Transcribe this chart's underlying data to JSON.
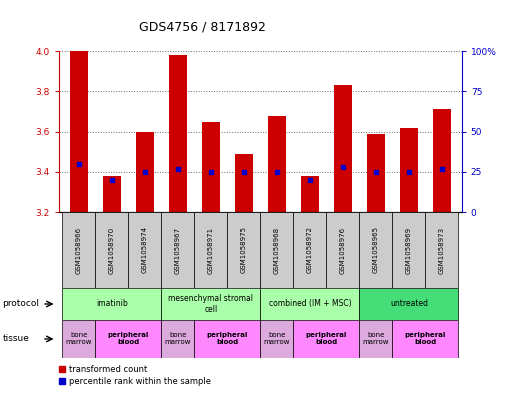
{
  "title": "GDS4756 / 8171892",
  "samples": [
    "GSM1058966",
    "GSM1058970",
    "GSM1058974",
    "GSM1058967",
    "GSM1058971",
    "GSM1058975",
    "GSM1058968",
    "GSM1058972",
    "GSM1058976",
    "GSM1058965",
    "GSM1058969",
    "GSM1058973"
  ],
  "transformed_counts": [
    4.0,
    3.38,
    3.6,
    3.98,
    3.65,
    3.49,
    3.68,
    3.38,
    3.83,
    3.59,
    3.62,
    3.71
  ],
  "percentile_ranks": [
    30,
    20,
    25,
    27,
    25,
    25,
    25,
    20,
    28,
    25,
    25,
    27
  ],
  "ylim": [
    3.2,
    4.0
  ],
  "yticks_left": [
    3.2,
    3.4,
    3.6,
    3.8,
    4.0
  ],
  "yticks_right": [
    0,
    25,
    50,
    75,
    100
  ],
  "bar_color_red": "#cc0000",
  "dot_color_blue": "#0000cc",
  "protocols": [
    {
      "label": "imatinib",
      "start": 0,
      "end": 3,
      "color": "#aaffaa"
    },
    {
      "label": "mesenchymal stromal\ncell",
      "start": 3,
      "end": 6,
      "color": "#aaffaa"
    },
    {
      "label": "combined (IM + MSC)",
      "start": 6,
      "end": 9,
      "color": "#aaffaa"
    },
    {
      "label": "untreated",
      "start": 9,
      "end": 12,
      "color": "#44dd77"
    }
  ],
  "tissues": [
    {
      "label": "bone\nmarrow",
      "start": 0,
      "end": 1,
      "color": "#ddaadd"
    },
    {
      "label": "peripheral\nblood",
      "start": 1,
      "end": 3,
      "color": "#ff88ff"
    },
    {
      "label": "bone\nmarrow",
      "start": 3,
      "end": 4,
      "color": "#ddaadd"
    },
    {
      "label": "peripheral\nblood",
      "start": 4,
      "end": 6,
      "color": "#ff88ff"
    },
    {
      "label": "bone\nmarrow",
      "start": 6,
      "end": 7,
      "color": "#ddaadd"
    },
    {
      "label": "peripheral\nblood",
      "start": 7,
      "end": 9,
      "color": "#ff88ff"
    },
    {
      "label": "bone\nmarrow",
      "start": 9,
      "end": 10,
      "color": "#ddaadd"
    },
    {
      "label": "peripheral\nblood",
      "start": 10,
      "end": 12,
      "color": "#ff88ff"
    }
  ],
  "ylabel_left_color": "#cc0000",
  "ylabel_right_color": "#0000cc",
  "sample_box_color": "#cccccc",
  "protocol_row_label": "protocol",
  "tissue_row_label": "tissue",
  "legend_red_label": "transformed count",
  "legend_blue_label": "percentile rank within the sample"
}
